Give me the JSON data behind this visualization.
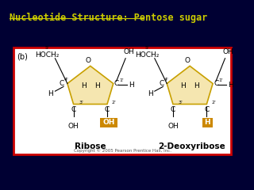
{
  "title": "Nucleotide Structure: Pentose sugar",
  "title_color": "#CCCC00",
  "bg_color": "#000033",
  "box_bg": "#FFFFFF",
  "box_edge": "#CC0000",
  "pentagon_fill": "#F5E6B0",
  "pentagon_edge": "#C8A000",
  "highlight_color": "#CC8800",
  "ribose_label": "Ribose",
  "deoxyribose_label": "2-Deoxyribose",
  "copyright": "Copyright © 2005 Pearson Prentice Hall, Inc.",
  "panel_label": "(b)"
}
